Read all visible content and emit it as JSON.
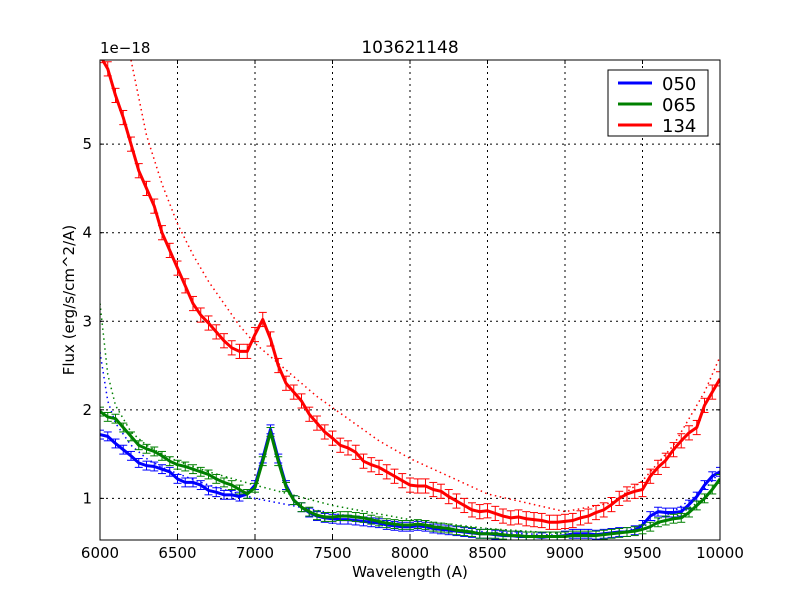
{
  "chart_data": {
    "type": "line",
    "title": "103621148",
    "xlabel": "Wavelength (A)",
    "ylabel": "Flux (erg/s/cm^2/A)",
    "y_offset_label": "1e−18",
    "xlim": [
      6000,
      10000
    ],
    "ylim": [
      0.53,
      5.95
    ],
    "xticks": [
      6000,
      6500,
      7000,
      7500,
      8000,
      8500,
      9000,
      9500,
      10000
    ],
    "yticks": [
      1,
      2,
      3,
      4,
      5
    ],
    "grid": true,
    "legend_position": "upper right",
    "x": [
      6000,
      6050,
      6100,
      6150,
      6200,
      6250,
      6300,
      6350,
      6400,
      6450,
      6500,
      6550,
      6600,
      6650,
      6700,
      6750,
      6800,
      6850,
      6900,
      6950,
      7000,
      7050,
      7100,
      7150,
      7200,
      7250,
      7300,
      7350,
      7400,
      7450,
      7500,
      7550,
      7600,
      7650,
      7700,
      7750,
      7800,
      7850,
      7900,
      7950,
      8000,
      8050,
      8100,
      8150,
      8200,
      8250,
      8300,
      8350,
      8400,
      8450,
      8500,
      8550,
      8600,
      8650,
      8700,
      8750,
      8800,
      8850,
      8900,
      8950,
      9000,
      9050,
      9100,
      9150,
      9200,
      9250,
      9300,
      9350,
      9400,
      9450,
      9500,
      9550,
      9600,
      9650,
      9700,
      9750,
      9800,
      9850,
      9900,
      9950,
      10000
    ],
    "series": [
      {
        "name": "050",
        "color": "#0000ff",
        "values": [
          1.72,
          1.7,
          1.62,
          1.55,
          1.48,
          1.4,
          1.37,
          1.36,
          1.33,
          1.3,
          1.22,
          1.18,
          1.18,
          1.15,
          1.09,
          1.07,
          1.04,
          1.04,
          1.02,
          1.05,
          1.15,
          1.45,
          1.78,
          1.45,
          1.15,
          0.98,
          0.9,
          0.84,
          0.8,
          0.78,
          0.77,
          0.76,
          0.76,
          0.75,
          0.74,
          0.73,
          0.72,
          0.7,
          0.69,
          0.68,
          0.68,
          0.69,
          0.68,
          0.66,
          0.65,
          0.64,
          0.63,
          0.62,
          0.61,
          0.6,
          0.6,
          0.59,
          0.58,
          0.58,
          0.57,
          0.57,
          0.57,
          0.56,
          0.57,
          0.57,
          0.58,
          0.6,
          0.6,
          0.6,
          0.59,
          0.6,
          0.61,
          0.62,
          0.62,
          0.64,
          0.7,
          0.8,
          0.85,
          0.84,
          0.84,
          0.85,
          0.93,
          1.02,
          1.15,
          1.25,
          1.3
        ],
        "errors": 0.05
      },
      {
        "name": "065",
        "color": "#008000",
        "values": [
          1.98,
          1.92,
          1.9,
          1.8,
          1.7,
          1.6,
          1.56,
          1.53,
          1.48,
          1.42,
          1.38,
          1.36,
          1.33,
          1.3,
          1.27,
          1.22,
          1.18,
          1.15,
          1.1,
          1.05,
          1.12,
          1.42,
          1.75,
          1.42,
          1.13,
          0.98,
          0.9,
          0.85,
          0.81,
          0.79,
          0.79,
          0.8,
          0.8,
          0.79,
          0.78,
          0.76,
          0.74,
          0.72,
          0.71,
          0.7,
          0.7,
          0.71,
          0.7,
          0.68,
          0.67,
          0.66,
          0.64,
          0.63,
          0.62,
          0.6,
          0.6,
          0.6,
          0.59,
          0.58,
          0.58,
          0.57,
          0.57,
          0.57,
          0.57,
          0.57,
          0.57,
          0.58,
          0.58,
          0.58,
          0.58,
          0.59,
          0.6,
          0.61,
          0.62,
          0.63,
          0.65,
          0.68,
          0.73,
          0.75,
          0.77,
          0.78,
          0.84,
          0.92,
          1.0,
          1.1,
          1.22
        ],
        "errors": 0.05
      },
      {
        "name": "134",
        "color": "#ff0000",
        "values": [
          6.0,
          5.85,
          5.55,
          5.3,
          5.0,
          4.7,
          4.5,
          4.3,
          4.0,
          3.8,
          3.6,
          3.4,
          3.2,
          3.07,
          2.98,
          2.88,
          2.78,
          2.7,
          2.66,
          2.66,
          2.85,
          3.02,
          2.8,
          2.5,
          2.3,
          2.2,
          2.1,
          1.95,
          1.85,
          1.75,
          1.68,
          1.6,
          1.57,
          1.52,
          1.42,
          1.38,
          1.35,
          1.3,
          1.25,
          1.2,
          1.15,
          1.14,
          1.14,
          1.1,
          1.08,
          1.02,
          0.97,
          0.92,
          0.87,
          0.85,
          0.86,
          0.83,
          0.8,
          0.78,
          0.79,
          0.77,
          0.76,
          0.75,
          0.73,
          0.73,
          0.74,
          0.75,
          0.78,
          0.8,
          0.84,
          0.87,
          0.93,
          1.0,
          1.05,
          1.08,
          1.1,
          1.25,
          1.35,
          1.43,
          1.55,
          1.65,
          1.74,
          1.8,
          2.05,
          2.2,
          2.35
        ],
        "errors": 0.08
      }
    ],
    "fit_curves": [
      {
        "name": "050 fit",
        "color": "#0000ff",
        "style": "dotted",
        "x": [
          6000,
          6050,
          6100,
          6200,
          6300,
          6400,
          6500,
          6700,
          7000,
          7500,
          8000,
          8500,
          9000,
          9300,
          9500,
          9700,
          9900,
          10000
        ],
        "values": [
          2.65,
          2.1,
          1.85,
          1.6,
          1.45,
          1.35,
          1.28,
          1.15,
          1.0,
          0.83,
          0.7,
          0.62,
          0.58,
          0.6,
          0.68,
          0.85,
          1.1,
          1.3
        ]
      },
      {
        "name": "065 fit",
        "color": "#008000",
        "style": "dotted",
        "x": [
          6000,
          6050,
          6100,
          6200,
          6300,
          6400,
          6500,
          6700,
          7000,
          7500,
          8000,
          8500,
          9000,
          9300,
          9500,
          9700,
          9900,
          10000
        ],
        "values": [
          3.2,
          2.4,
          2.05,
          1.75,
          1.6,
          1.5,
          1.42,
          1.3,
          1.15,
          0.92,
          0.76,
          0.66,
          0.6,
          0.6,
          0.65,
          0.78,
          1.0,
          1.2
        ]
      },
      {
        "name": "134 fit",
        "color": "#ff0000",
        "style": "dotted",
        "x": [
          6200,
          6300,
          6400,
          6500,
          6600,
          6700,
          6800,
          6900,
          7000,
          7200,
          7400,
          7600,
          7800,
          8000,
          8500,
          9000,
          9300,
          9500,
          9700,
          9900,
          10000
        ],
        "values": [
          5.95,
          5.1,
          4.55,
          4.1,
          3.75,
          3.45,
          3.2,
          2.95,
          2.75,
          2.45,
          2.15,
          1.9,
          1.65,
          1.45,
          1.05,
          0.85,
          0.95,
          1.2,
          1.6,
          2.2,
          2.6
        ]
      }
    ]
  }
}
